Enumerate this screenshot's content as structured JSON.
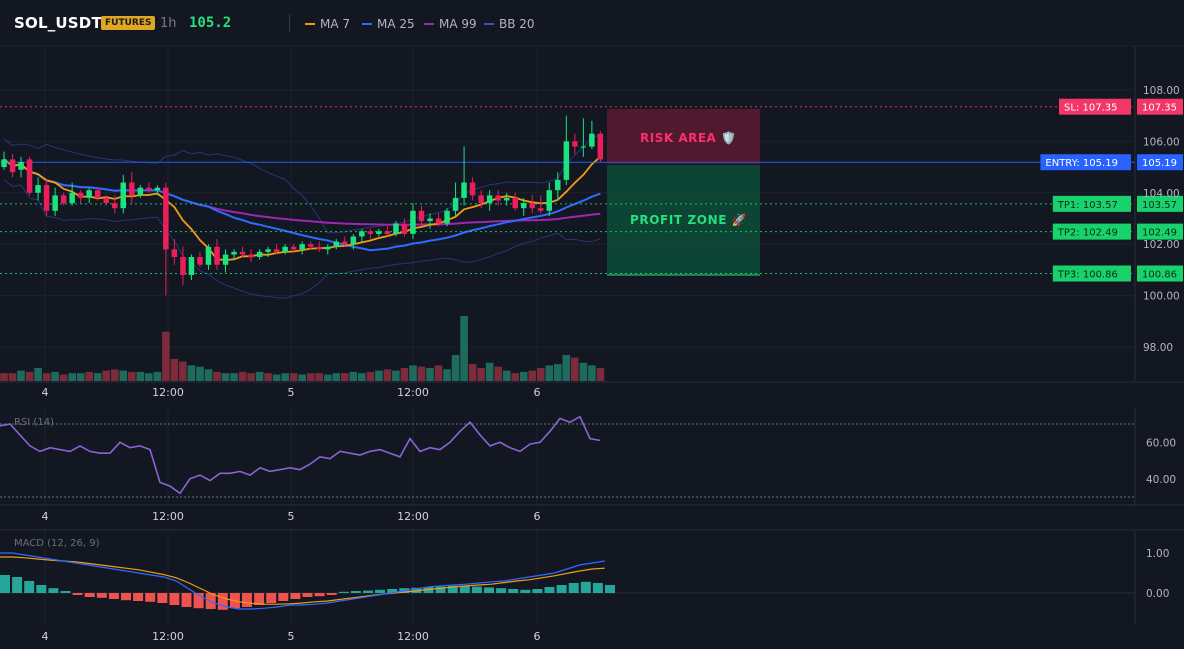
{
  "header": {
    "symbol": "SOL_USDT",
    "badge": "FUTURES",
    "timeframe": "1h",
    "price": "105.2",
    "legend": [
      {
        "label": "MA 7",
        "color": "#f39c12"
      },
      {
        "label": "MA 25",
        "color": "#2f6bff"
      },
      {
        "label": "MA 99",
        "color": "#9c27b0"
      },
      {
        "label": "BB 20",
        "color": "#2c3e8f"
      }
    ]
  },
  "zones": {
    "risk_label": "RISK AREA 🛡️",
    "profit_label": "PROFIT ZONE 🚀"
  },
  "levels": [
    {
      "label": "SL: 107.35",
      "value": 107.35,
      "value_text": "107.35",
      "color": "#f23668",
      "style": "dotted"
    },
    {
      "label": "ENTRY: 105.19",
      "value": 105.19,
      "value_text": "105.19",
      "color": "#2962ff",
      "style": "solid"
    },
    {
      "label": "TP1: 103.57",
      "value": 103.57,
      "value_text": "103.57",
      "color": "#18d36b",
      "style": "dotted"
    },
    {
      "label": "TP2: 102.49",
      "value": 102.49,
      "value_text": "102.49",
      "color": "#18d36b",
      "style": "dotted"
    },
    {
      "label": "TP3: 100.86",
      "value": 100.86,
      "value_text": "100.86",
      "color": "#18d36b",
      "style": "dotted"
    }
  ],
  "axes": {
    "price_ticks": [
      "108.00",
      "106.00",
      "104.00",
      "102.00",
      "100.00",
      "98.00"
    ],
    "time_labels": [
      "4",
      "12:00",
      "5",
      "12:00",
      "6"
    ],
    "rsi_title": "RSI (14)",
    "rsi_ticks": [
      "60.00",
      "40.00"
    ],
    "macd_title": "MACD (12, 26, 9)",
    "macd_ticks": [
      "1.00",
      "0.00"
    ]
  },
  "chart_data": {
    "type": "candlestick",
    "candles": [
      {
        "o": 105.0,
        "h": 105.6,
        "l": 104.9,
        "c": 105.3
      },
      {
        "o": 105.3,
        "h": 105.5,
        "l": 104.6,
        "c": 104.8
      },
      {
        "o": 104.9,
        "h": 105.4,
        "l": 104.6,
        "c": 105.2
      },
      {
        "o": 105.3,
        "h": 105.4,
        "l": 103.9,
        "c": 104.0
      },
      {
        "o": 104.0,
        "h": 104.6,
        "l": 103.7,
        "c": 104.3
      },
      {
        "o": 104.3,
        "h": 104.5,
        "l": 103.1,
        "c": 103.3
      },
      {
        "o": 103.3,
        "h": 104.2,
        "l": 103.1,
        "c": 103.9
      },
      {
        "o": 103.9,
        "h": 104.0,
        "l": 103.5,
        "c": 103.6
      },
      {
        "o": 103.6,
        "h": 104.4,
        "l": 103.5,
        "c": 104.0
      },
      {
        "o": 104.0,
        "h": 104.1,
        "l": 103.6,
        "c": 103.8
      },
      {
        "o": 103.8,
        "h": 104.2,
        "l": 103.6,
        "c": 104.1
      },
      {
        "o": 104.1,
        "h": 104.2,
        "l": 103.7,
        "c": 103.8
      },
      {
        "o": 103.8,
        "h": 103.9,
        "l": 103.5,
        "c": 103.6
      },
      {
        "o": 103.6,
        "h": 103.9,
        "l": 103.2,
        "c": 103.4
      },
      {
        "o": 103.4,
        "h": 104.7,
        "l": 103.2,
        "c": 104.4
      },
      {
        "o": 104.4,
        "h": 104.8,
        "l": 103.6,
        "c": 103.9
      },
      {
        "o": 103.9,
        "h": 104.3,
        "l": 103.8,
        "c": 104.2
      },
      {
        "o": 104.2,
        "h": 104.4,
        "l": 104.0,
        "c": 104.1
      },
      {
        "o": 104.1,
        "h": 104.3,
        "l": 103.9,
        "c": 104.2
      },
      {
        "o": 104.2,
        "h": 104.4,
        "l": 100.0,
        "c": 101.8
      },
      {
        "o": 101.8,
        "h": 102.2,
        "l": 101.2,
        "c": 101.5
      },
      {
        "o": 101.5,
        "h": 101.9,
        "l": 100.4,
        "c": 100.8
      },
      {
        "o": 100.8,
        "h": 101.6,
        "l": 100.6,
        "c": 101.5
      },
      {
        "o": 101.5,
        "h": 101.7,
        "l": 101.1,
        "c": 101.2
      },
      {
        "o": 101.2,
        "h": 102.0,
        "l": 101.0,
        "c": 101.9
      },
      {
        "o": 101.9,
        "h": 102.2,
        "l": 101.0,
        "c": 101.2
      },
      {
        "o": 101.2,
        "h": 101.8,
        "l": 100.9,
        "c": 101.6
      },
      {
        "o": 101.6,
        "h": 101.8,
        "l": 101.4,
        "c": 101.7
      },
      {
        "o": 101.7,
        "h": 101.9,
        "l": 101.5,
        "c": 101.6
      },
      {
        "o": 101.6,
        "h": 101.8,
        "l": 101.3,
        "c": 101.5
      },
      {
        "o": 101.5,
        "h": 101.8,
        "l": 101.4,
        "c": 101.7
      },
      {
        "o": 101.7,
        "h": 101.9,
        "l": 101.5,
        "c": 101.8
      },
      {
        "o": 101.8,
        "h": 102.0,
        "l": 101.6,
        "c": 101.7
      },
      {
        "o": 101.7,
        "h": 102.0,
        "l": 101.6,
        "c": 101.9
      },
      {
        "o": 101.9,
        "h": 102.0,
        "l": 101.7,
        "c": 101.8
      },
      {
        "o": 101.8,
        "h": 102.1,
        "l": 101.6,
        "c": 102.0
      },
      {
        "o": 102.0,
        "h": 102.1,
        "l": 101.8,
        "c": 101.9
      },
      {
        "o": 101.9,
        "h": 102.1,
        "l": 101.7,
        "c": 101.8
      },
      {
        "o": 101.8,
        "h": 102.0,
        "l": 101.6,
        "c": 101.9
      },
      {
        "o": 101.9,
        "h": 102.2,
        "l": 101.8,
        "c": 102.1
      },
      {
        "o": 102.1,
        "h": 102.3,
        "l": 101.9,
        "c": 102.0
      },
      {
        "o": 102.0,
        "h": 102.4,
        "l": 101.8,
        "c": 102.3
      },
      {
        "o": 102.3,
        "h": 102.6,
        "l": 102.1,
        "c": 102.5
      },
      {
        "o": 102.5,
        "h": 102.6,
        "l": 102.2,
        "c": 102.4
      },
      {
        "o": 102.4,
        "h": 102.6,
        "l": 102.3,
        "c": 102.5
      },
      {
        "o": 102.5,
        "h": 102.7,
        "l": 102.3,
        "c": 102.4
      },
      {
        "o": 102.4,
        "h": 102.9,
        "l": 102.3,
        "c": 102.8
      },
      {
        "o": 102.8,
        "h": 103.0,
        "l": 102.3,
        "c": 102.4
      },
      {
        "o": 102.4,
        "h": 103.6,
        "l": 102.2,
        "c": 103.3
      },
      {
        "o": 103.3,
        "h": 103.5,
        "l": 102.7,
        "c": 102.9
      },
      {
        "o": 102.9,
        "h": 103.2,
        "l": 102.6,
        "c": 103.0
      },
      {
        "o": 103.0,
        "h": 103.2,
        "l": 102.7,
        "c": 102.8
      },
      {
        "o": 102.8,
        "h": 103.4,
        "l": 102.7,
        "c": 103.3
      },
      {
        "o": 103.3,
        "h": 104.4,
        "l": 103.1,
        "c": 103.8
      },
      {
        "o": 103.8,
        "h": 105.8,
        "l": 103.5,
        "c": 104.4
      },
      {
        "o": 104.4,
        "h": 104.6,
        "l": 103.7,
        "c": 103.9
      },
      {
        "o": 103.9,
        "h": 104.1,
        "l": 103.4,
        "c": 103.6
      },
      {
        "o": 103.6,
        "h": 104.1,
        "l": 103.3,
        "c": 103.9
      },
      {
        "o": 103.9,
        "h": 104.1,
        "l": 103.5,
        "c": 103.7
      },
      {
        "o": 103.7,
        "h": 104.0,
        "l": 103.5,
        "c": 103.8
      },
      {
        "o": 103.8,
        "h": 104.0,
        "l": 103.3,
        "c": 103.4
      },
      {
        "o": 103.4,
        "h": 103.8,
        "l": 103.1,
        "c": 103.6
      },
      {
        "o": 103.6,
        "h": 103.9,
        "l": 103.2,
        "c": 103.4
      },
      {
        "o": 103.4,
        "h": 103.9,
        "l": 103.2,
        "c": 103.3
      },
      {
        "o": 103.3,
        "h": 104.4,
        "l": 103.1,
        "c": 104.1
      },
      {
        "o": 104.1,
        "h": 104.8,
        "l": 103.7,
        "c": 104.5
      },
      {
        "o": 104.5,
        "h": 107.0,
        "l": 104.3,
        "c": 106.0
      },
      {
        "o": 106.0,
        "h": 106.3,
        "l": 105.5,
        "c": 105.8
      },
      {
        "o": 105.8,
        "h": 106.9,
        "l": 105.4,
        "c": 105.8
      },
      {
        "o": 105.8,
        "h": 106.8,
        "l": 105.7,
        "c": 106.3
      },
      {
        "o": 106.3,
        "h": 106.4,
        "l": 105.2,
        "c": 105.3
      }
    ],
    "volume_dir": [
      "down",
      "down",
      "up",
      "down",
      "up",
      "down",
      "up",
      "down",
      "up",
      "up",
      "down",
      "up",
      "down",
      "down",
      "up",
      "down",
      "up",
      "up",
      "up",
      "down",
      "down",
      "down",
      "up",
      "up",
      "up",
      "down",
      "up",
      "up",
      "down",
      "down",
      "up",
      "down",
      "up",
      "up",
      "down",
      "up",
      "down",
      "down",
      "up",
      "up",
      "down",
      "up",
      "up",
      "down",
      "up",
      "down",
      "up",
      "down",
      "up",
      "down",
      "up",
      "down",
      "up",
      "up",
      "up",
      "down",
      "down",
      "up",
      "down",
      "up",
      "down",
      "up",
      "down",
      "down",
      "up",
      "up",
      "up",
      "down",
      "up",
      "up",
      "down"
    ],
    "volume": [
      6,
      6,
      8,
      7,
      10,
      6,
      7,
      5,
      6,
      6,
      7,
      6,
      8,
      9,
      8,
      7,
      7,
      6,
      7,
      38,
      17,
      15,
      12,
      11,
      9,
      7,
      6,
      6,
      7,
      6,
      7,
      6,
      5,
      6,
      6,
      5,
      6,
      6,
      5,
      6,
      6,
      7,
      6,
      7,
      8,
      9,
      8,
      10,
      12,
      11,
      10,
      12,
      9,
      20,
      50,
      13,
      10,
      14,
      11,
      8,
      6,
      7,
      8,
      10,
      12,
      13,
      20,
      18,
      14,
      12,
      10
    ],
    "rsi": [
      69,
      70,
      64,
      58,
      55,
      57,
      56,
      55,
      58,
      55,
      54,
      54,
      60,
      57,
      58,
      56,
      38,
      36,
      32,
      40,
      42,
      39,
      43,
      43,
      44,
      42,
      46,
      44,
      45,
      46,
      45,
      48,
      52,
      51,
      55,
      54,
      53,
      55,
      56,
      54,
      52,
      62,
      55,
      57,
      56,
      60,
      66,
      71,
      64,
      58,
      60,
      57,
      55,
      59,
      60,
      66,
      73,
      71,
      74,
      62,
      61
    ],
    "macd": [
      1.0,
      1.0,
      0.95,
      0.9,
      0.85,
      0.8,
      0.75,
      0.7,
      0.65,
      0.6,
      0.55,
      0.5,
      0.45,
      0.4,
      0.3,
      0.1,
      -0.1,
      -0.25,
      -0.35,
      -0.4,
      -0.4,
      -0.38,
      -0.35,
      -0.3,
      -0.3,
      -0.28,
      -0.25,
      -0.2,
      -0.15,
      -0.1,
      -0.05,
      0,
      0.05,
      0.1,
      0.15,
      0.18,
      0.2,
      0.22,
      0.25,
      0.28,
      0.3,
      0.35,
      0.4,
      0.45,
      0.5,
      0.6,
      0.7,
      0.75,
      0.8
    ],
    "signal": [
      0.9,
      0.9,
      0.88,
      0.85,
      0.82,
      0.8,
      0.78,
      0.74,
      0.7,
      0.66,
      0.62,
      0.58,
      0.52,
      0.46,
      0.38,
      0.25,
      0.1,
      -0.05,
      -0.15,
      -0.22,
      -0.26,
      -0.28,
      -0.28,
      -0.27,
      -0.25,
      -0.22,
      -0.2,
      -0.16,
      -0.12,
      -0.08,
      -0.04,
      -0.01,
      0.02,
      0.05,
      0.09,
      0.12,
      0.15,
      0.18,
      0.2,
      0.22,
      0.26,
      0.3,
      0.33,
      0.38,
      0.43,
      0.49,
      0.55,
      0.6,
      0.62
    ],
    "hist": [
      0.45,
      0.4,
      0.3,
      0.2,
      0.12,
      0.05,
      -0.05,
      -0.1,
      -0.12,
      -0.15,
      -0.18,
      -0.2,
      -0.22,
      -0.25,
      -0.3,
      -0.35,
      -0.38,
      -0.4,
      -0.42,
      -0.38,
      -0.35,
      -0.3,
      -0.25,
      -0.2,
      -0.15,
      -0.1,
      -0.08,
      -0.05,
      0.03,
      0.05,
      0.06,
      0.08,
      0.1,
      0.12,
      0.13,
      0.15,
      0.16,
      0.18,
      0.18,
      0.16,
      0.14,
      0.12,
      0.1,
      0.08,
      0.1,
      0.15,
      0.2,
      0.25,
      0.28,
      0.25,
      0.2
    ]
  }
}
